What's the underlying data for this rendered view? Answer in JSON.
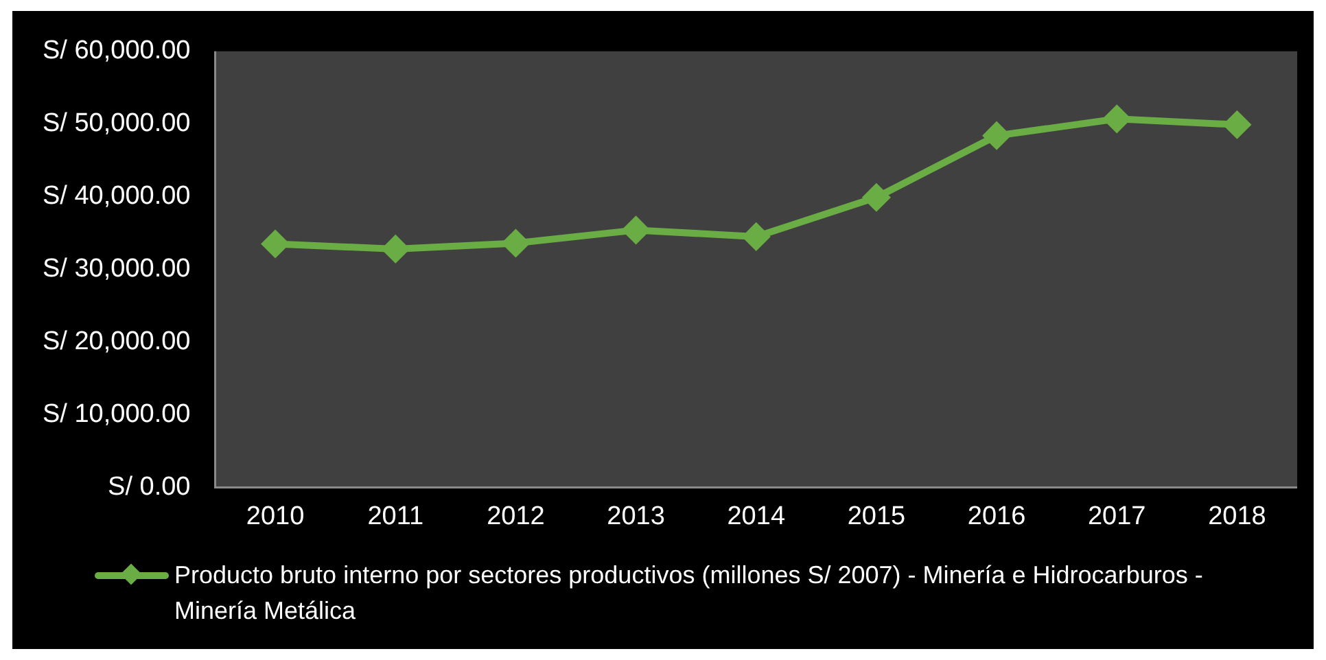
{
  "chart_data": {
    "type": "line",
    "categories": [
      "2010",
      "2011",
      "2012",
      "2013",
      "2014",
      "2015",
      "2016",
      "2017",
      "2018"
    ],
    "series": [
      {
        "name": "Producto bruto interno por sectores productivos (millones S/ 2007) - Minería e Hidrocarburos - Minería Metálica",
        "color": "#6aad45",
        "values": [
          33500,
          32800,
          33600,
          35400,
          34500,
          39900,
          48400,
          50700,
          49900
        ]
      }
    ],
    "ylim": [
      0,
      60000
    ],
    "yticks": [
      {
        "value": 0,
        "label": "S/ 0.00"
      },
      {
        "value": 10000,
        "label": "S/ 10,000.00"
      },
      {
        "value": 20000,
        "label": "S/ 20,000.00"
      },
      {
        "value": 30000,
        "label": "S/ 30,000.00"
      },
      {
        "value": 40000,
        "label": "S/ 40,000.00"
      },
      {
        "value": 50000,
        "label": "S/ 50,000.00"
      },
      {
        "value": 60000,
        "label": "S/ 60,000.00"
      }
    ],
    "grid": false,
    "legend": "bottom",
    "marker": "diamond",
    "line_style": "solid"
  }
}
